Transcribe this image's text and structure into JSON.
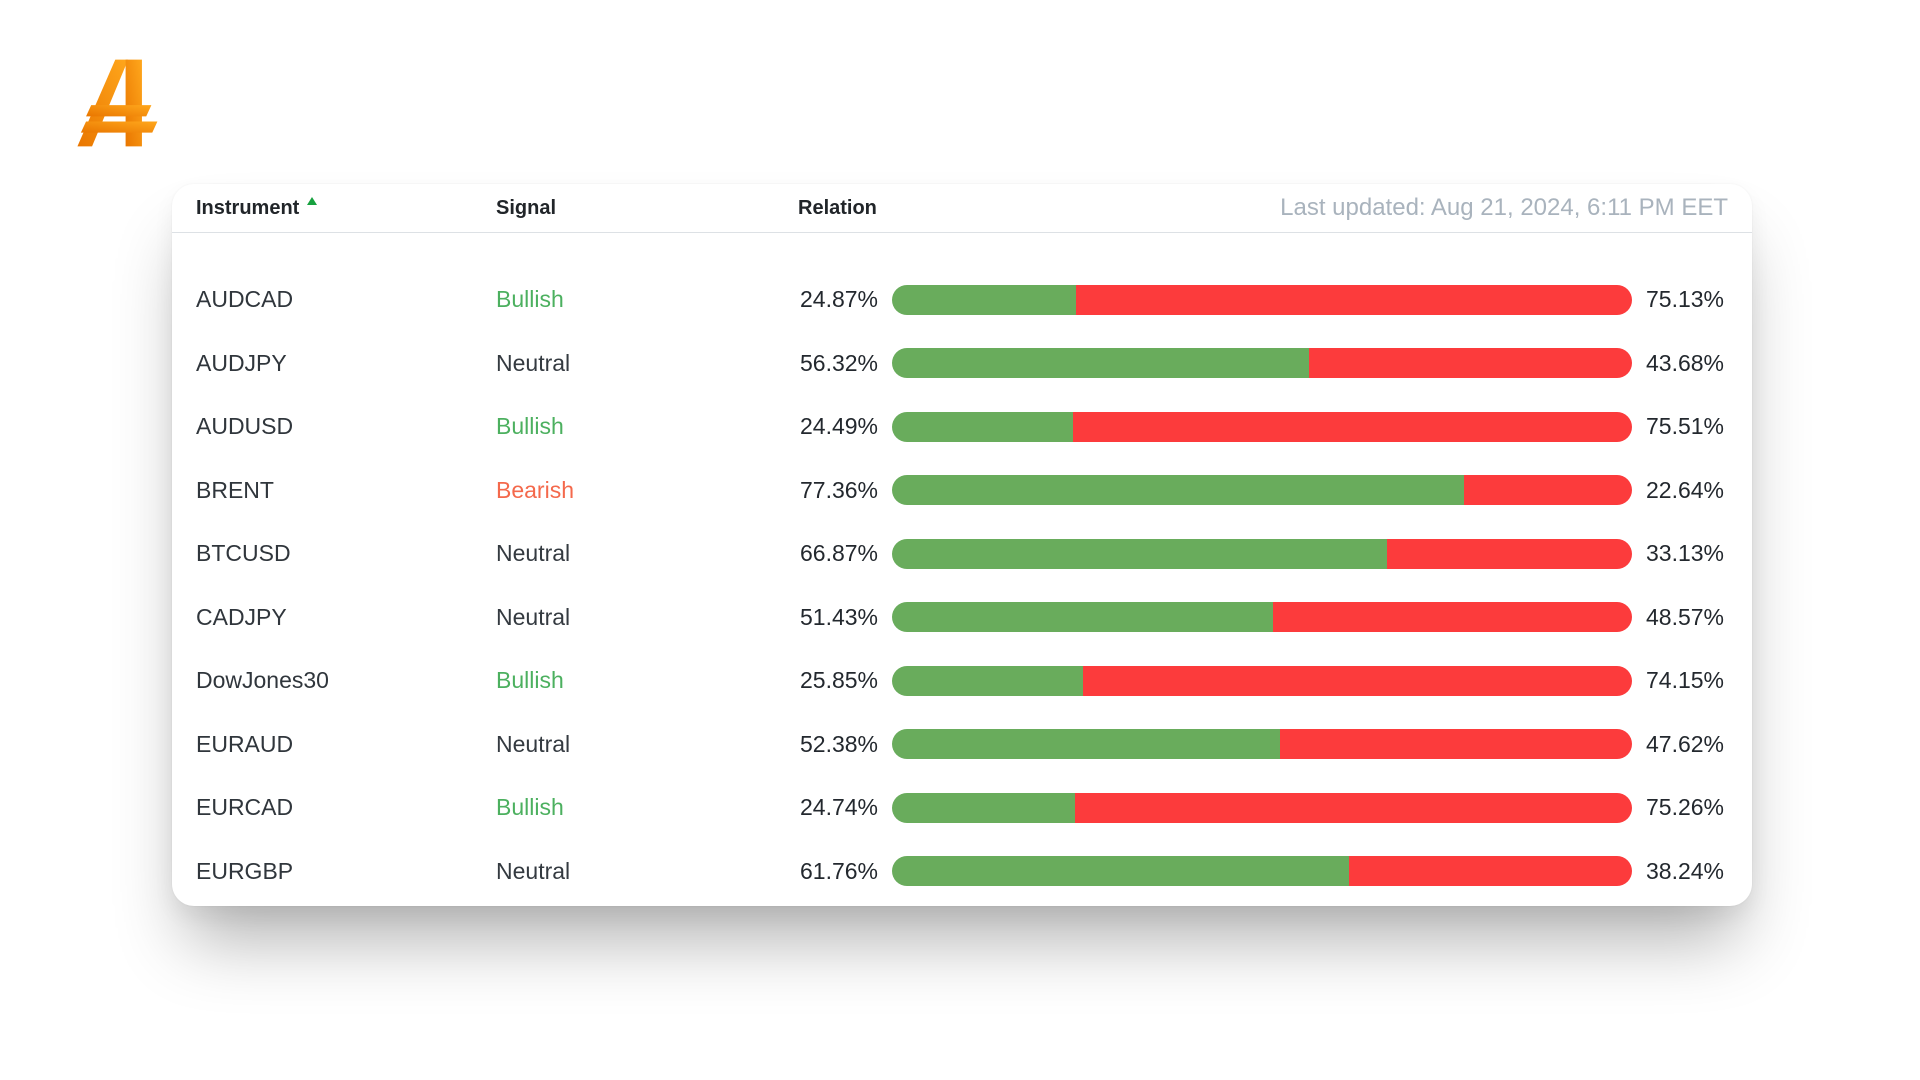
{
  "logo": {
    "glyph": "stylized-A-double-crossbar"
  },
  "colors": {
    "bar-green": "#69ac5c",
    "bar-red": "#fc3b3c",
    "bullish": "#4cb05f",
    "bearish": "#f4694c",
    "neutral": "#343a40",
    "sort-green": "#17a13f",
    "muted": "#a9b3bd",
    "heading": "#212529",
    "logo-start": "#e97600",
    "logo-end": "#ffa71c"
  },
  "table": {
    "columns": {
      "instrument": "Instrument",
      "signal": "Signal",
      "relation": "Relation"
    },
    "sort_icon": "sort-asc-triangle",
    "last_updated": "Last updated: Aug 21, 2024, 6:11 PM EET",
    "rows": [
      {
        "instrument": "AUDCAD",
        "signal": "Bullish",
        "long_pct": "24.87%",
        "short_pct": "75.13%",
        "long_value": 24.87
      },
      {
        "instrument": "AUDJPY",
        "signal": "Neutral",
        "long_pct": "56.32%",
        "short_pct": "43.68%",
        "long_value": 56.32
      },
      {
        "instrument": "AUDUSD",
        "signal": "Bullish",
        "long_pct": "24.49%",
        "short_pct": "75.51%",
        "long_value": 24.49
      },
      {
        "instrument": "BRENT",
        "signal": "Bearish",
        "long_pct": "77.36%",
        "short_pct": "22.64%",
        "long_value": 77.36
      },
      {
        "instrument": "BTCUSD",
        "signal": "Neutral",
        "long_pct": "66.87%",
        "short_pct": "33.13%",
        "long_value": 66.87
      },
      {
        "instrument": "CADJPY",
        "signal": "Neutral",
        "long_pct": "51.43%",
        "short_pct": "48.57%",
        "long_value": 51.43
      },
      {
        "instrument": "DowJones30",
        "signal": "Bullish",
        "long_pct": "25.85%",
        "short_pct": "74.15%",
        "long_value": 25.85
      },
      {
        "instrument": "EURAUD",
        "signal": "Neutral",
        "long_pct": "52.38%",
        "short_pct": "47.62%",
        "long_value": 52.38
      },
      {
        "instrument": "EURCAD",
        "signal": "Bullish",
        "long_pct": "24.74%",
        "short_pct": "75.26%",
        "long_value": 24.74
      },
      {
        "instrument": "EURGBP",
        "signal": "Neutral",
        "long_pct": "61.76%",
        "short_pct": "38.24%",
        "long_value": 61.76
      }
    ]
  }
}
